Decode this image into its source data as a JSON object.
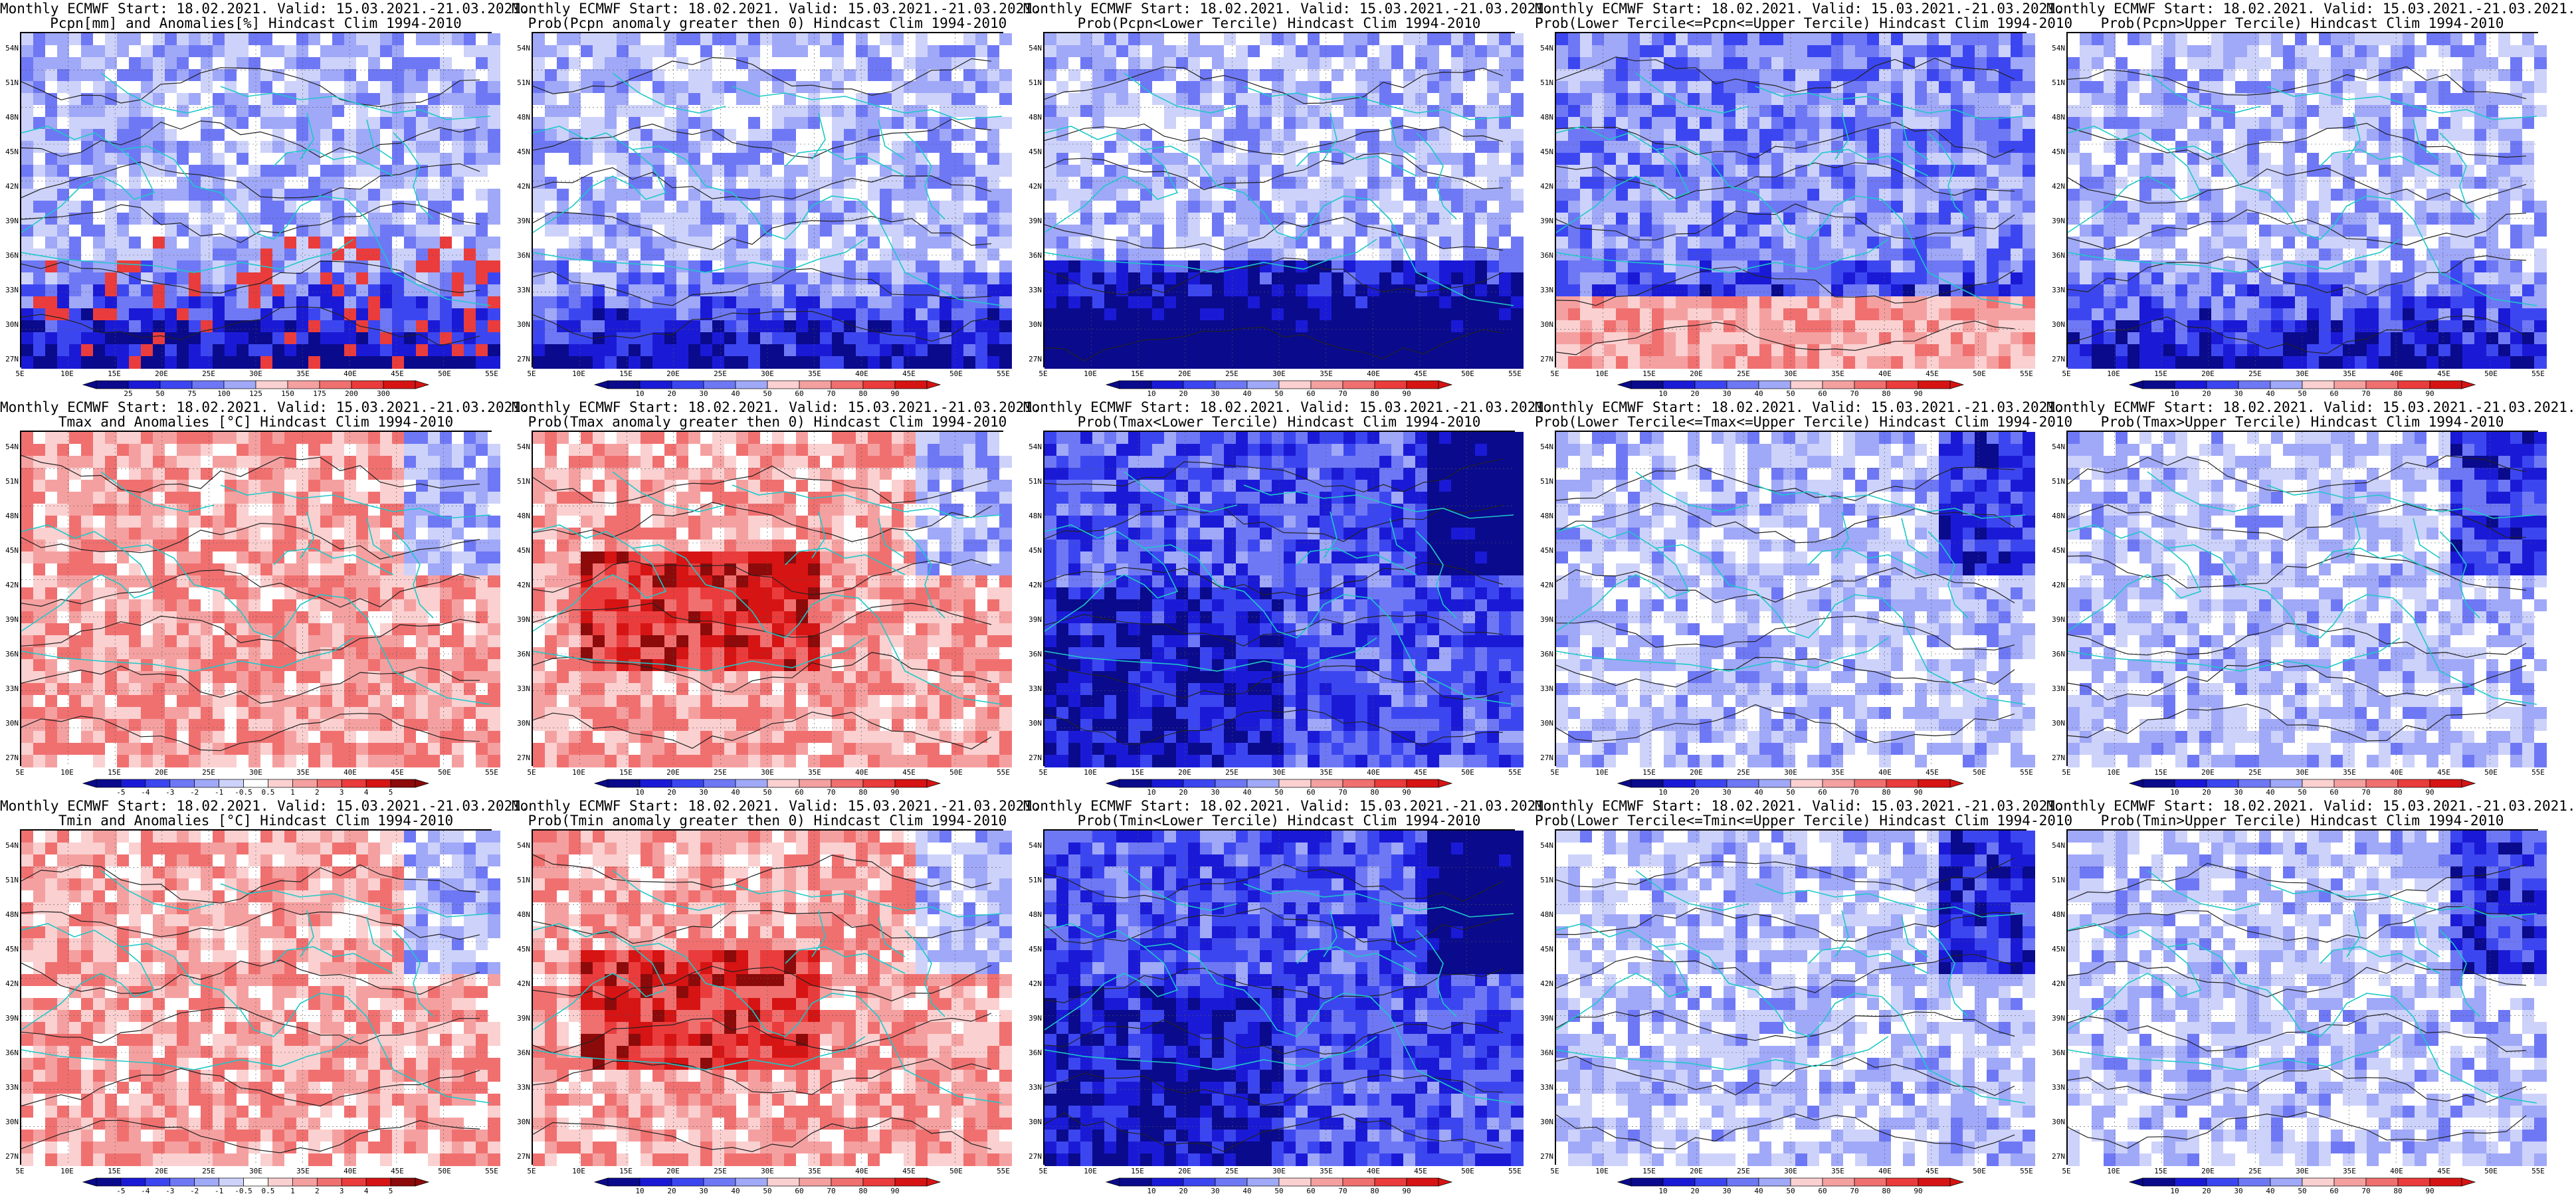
{
  "panels": [
    {
      "line1": "Monthly ECMWF Start: 18.02.2021. Valid: 15.03.2021.-21.03.2021.",
      "line2": "Pcpn[mm] and Anomalies[%] Hindcast Clim 1994-2010",
      "type": "pcpn_anom"
    },
    {
      "line1": "Monthly ECMWF Start: 18.02.2021. Valid: 15.03.2021.-21.03.2021.",
      "line2": "Prob(Pcpn anomaly greater then 0) Hindcast Clim 1994-2010",
      "type": "prob"
    },
    {
      "line1": "Monthly ECMWF Start: 18.02.2021. Valid: 15.03.2021.-21.03.2021.",
      "line2": "Prob(Pcpn<Lower Tercile) Hindcast Clim 1994-2010",
      "type": "prob"
    },
    {
      "line1": "Monthly ECMWF Start: 18.02.2021. Valid: 15.03.2021.-21.03.2021.",
      "line2": "Prob(Lower Tercile<=Pcpn<=Upper Tercile) Hindcast Clim 1994-2010",
      "type": "prob"
    },
    {
      "line1": "Monthly ECMWF Start: 18.02.2021. Valid: 15.03.2021.-21.03.2021.",
      "line2": "Prob(Pcpn>Upper Tercile) Hindcast Clim 1994-2010",
      "type": "prob"
    },
    {
      "line1": "Monthly ECMWF Start: 18.02.2021. Valid: 15.03.2021.-21.03.2021.",
      "line2": "Tmax and Anomalies [°C] Hindcast Clim 1994-2010",
      "type": "temp_anom"
    },
    {
      "line1": "Monthly ECMWF Start: 18.02.2021. Valid: 15.03.2021.-21.03.2021.",
      "line2": "Prob(Tmax anomaly greater then 0) Hindcast Clim 1994-2010",
      "type": "prob"
    },
    {
      "line1": "Monthly ECMWF Start: 18.02.2021. Valid: 15.03.2021.-21.03.2021.",
      "line2": "Prob(Tmax<Lower Tercile) Hindcast Clim 1994-2010",
      "type": "prob"
    },
    {
      "line1": "Monthly ECMWF Start: 18.02.2021. Valid: 15.03.2021.-21.03.2021.",
      "line2": "Prob(Lower Tercile<=Tmax<=Upper Tercile) Hindcast Clim 1994-2010",
      "type": "prob"
    },
    {
      "line1": "Monthly ECMWF Start: 18.02.2021. Valid: 15.03.2021.-21.03.2021.",
      "line2": "Prob(Tmax>Upper Tercile) Hindcast Clim 1994-2010",
      "type": "prob"
    },
    {
      "line1": "Monthly ECMWF Start: 18.02.2021. Valid: 15.03.2021.-21.03.2021.",
      "line2": "Tmin and Anomalies [°C] Hindcast Clim 1994-2010",
      "type": "temp_anom"
    },
    {
      "line1": "Monthly ECMWF Start: 18.02.2021. Valid: 15.03.2021.-21.03.2021.",
      "line2": "Prob(Tmin anomaly greater then 0) Hindcast Clim 1994-2010",
      "type": "prob"
    },
    {
      "line1": "Monthly ECMWF Start: 18.02.2021. Valid: 15.03.2021.-21.03.2021.",
      "line2": "Prob(Tmin<Lower Tercile) Hindcast Clim 1994-2010",
      "type": "prob"
    },
    {
      "line1": "Monthly ECMWF Start: 18.02.2021. Valid: 15.03.2021.-21.03.2021.",
      "line2": "Prob(Lower Tercile<=Tmin<=Upper Tercile) Hindcast Clim 1994-2010",
      "type": "prob"
    },
    {
      "line1": "Monthly ECMWF Start: 18.02.2021. Valid: 15.03.2021.-21.03.2021.",
      "line2": "Prob(Tmin>Upper Tercile) Hindcast Clim 1994-2010",
      "type": "prob"
    }
  ],
  "axes": {
    "lat_labels": [
      "54N",
      "51N",
      "48N",
      "45N",
      "42N",
      "39N",
      "36N",
      "33N",
      "30N",
      "27N"
    ],
    "lon_labels": [
      "5E",
      "10E",
      "15E",
      "20E",
      "25E",
      "30E",
      "35E",
      "40E",
      "45E",
      "50E",
      "55E"
    ]
  },
  "colorbars": {
    "pcpn_anom": [
      "25",
      "50",
      "75",
      "100",
      "125",
      "150",
      "175",
      "200",
      "300"
    ],
    "prob": [
      "10",
      "20",
      "30",
      "40",
      "50",
      "60",
      "70",
      "80",
      "90"
    ],
    "temp_anom": [
      "-5",
      "-4",
      "-3",
      "-2",
      "-1",
      "-0.5",
      "0.5",
      "1",
      "2",
      "3",
      "4",
      "5"
    ]
  },
  "colors": {
    "blues": [
      "#0a0a8c",
      "#1a1ad6",
      "#3c46f0",
      "#6e78f5",
      "#a0a8f8",
      "#cdd2fb"
    ],
    "reds": [
      "#fbd0d0",
      "#f5a0a0",
      "#f07070",
      "#ea3c3c",
      "#d61414",
      "#8c0a0a"
    ],
    "coast": "#1ec8c8"
  }
}
